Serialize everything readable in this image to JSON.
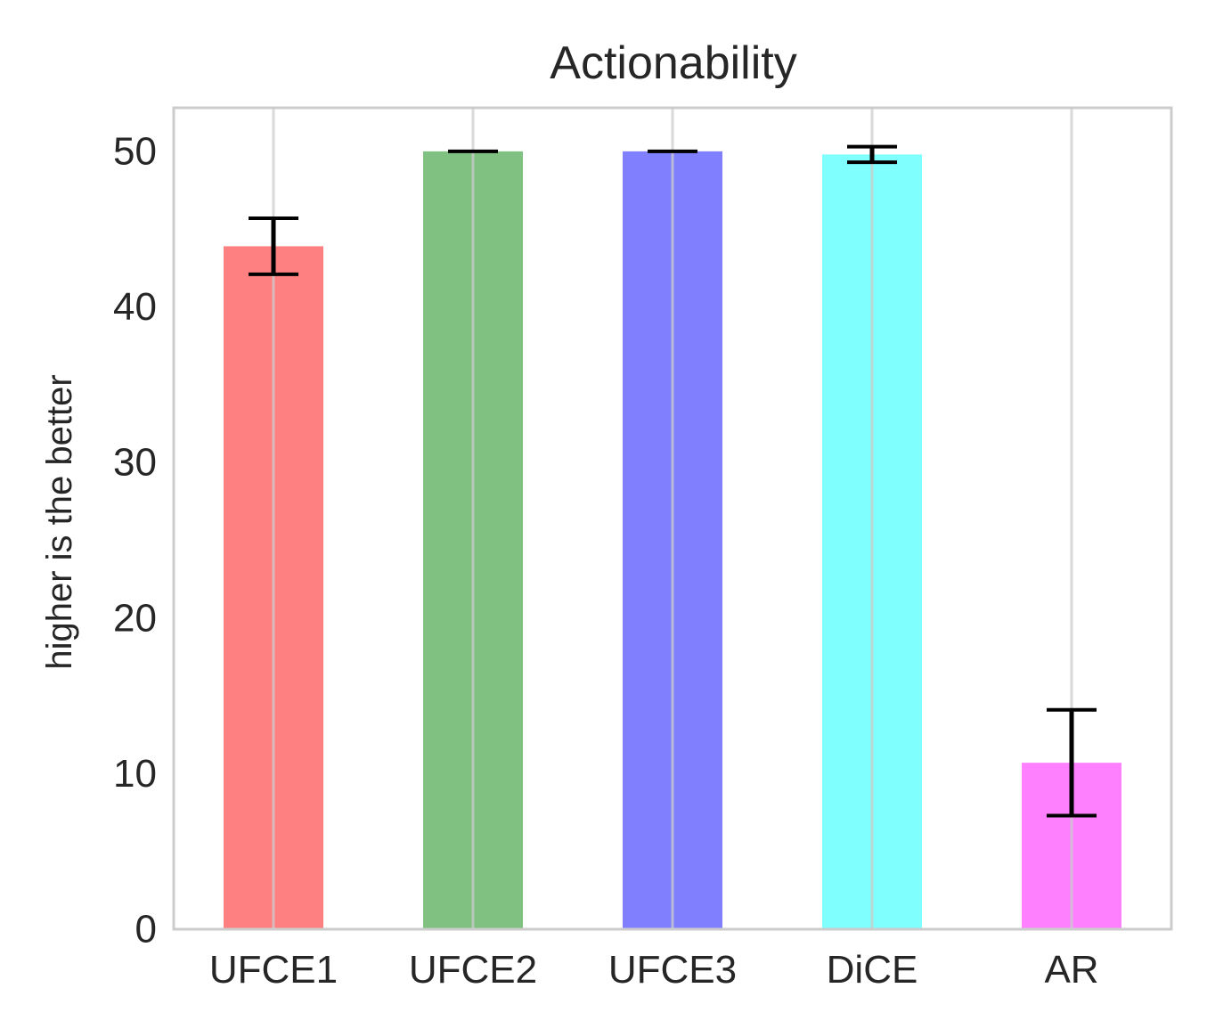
{
  "chart_data": {
    "type": "bar",
    "title": "Actionability",
    "xlabel": "",
    "ylabel": "higher is the better",
    "categories": [
      "UFCE1",
      "UFCE2",
      "UFCE3",
      "DiCE",
      "AR"
    ],
    "values": [
      43.9,
      50.0,
      50.0,
      49.8,
      10.7
    ],
    "errors": [
      1.8,
      0.0,
      0.0,
      0.5,
      3.4
    ],
    "colors": [
      "#ff8080",
      "#80c080",
      "#8080ff",
      "#80ffff",
      "#ff80ff"
    ],
    "ylim": [
      0,
      52.8
    ],
    "yticks": [
      "0",
      "10",
      "20",
      "30",
      "40",
      "50"
    ],
    "grid": true,
    "style": {
      "frame_color": "#cccccc",
      "grid_color": "#cccccc",
      "errorbar_color": "#000000"
    }
  }
}
